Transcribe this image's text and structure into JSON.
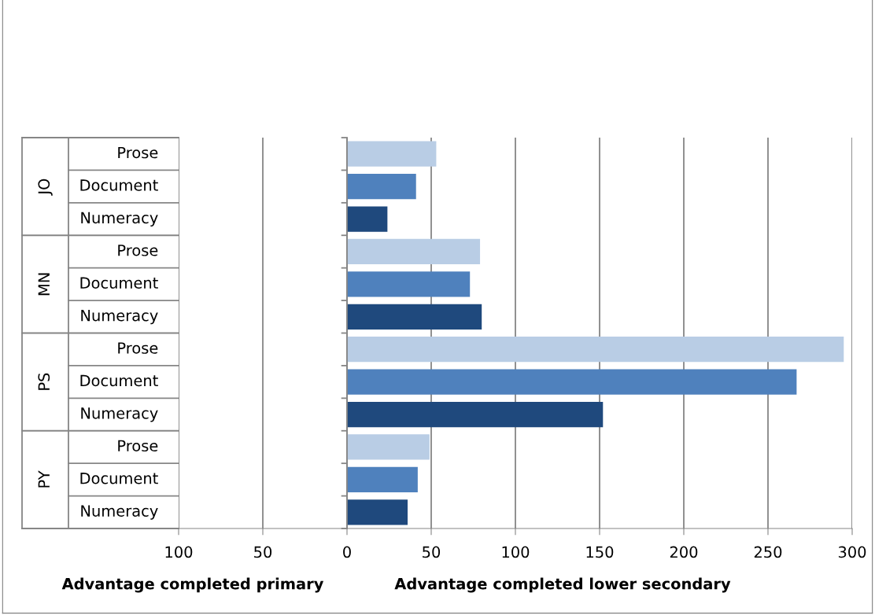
{
  "chart_data": {
    "type": "bar",
    "orientation": "horizontal",
    "categories": [
      "Prose",
      "Document",
      "Numeracy",
      "Prose",
      "Document",
      "Numeracy",
      "Prose",
      "Document",
      "Numeracy",
      "Prose",
      "Document",
      "Numeracy"
    ],
    "values": [
      53,
      41,
      24,
      79,
      73,
      80,
      295,
      267,
      152,
      49,
      42,
      36
    ],
    "colors": [
      "#b9cde5",
      "#4f81bd",
      "#1f497d",
      "#b9cde5",
      "#4f81bd",
      "#1f497d",
      "#b9cde5",
      "#4f81bd",
      "#1f497d",
      "#b9cde5",
      "#4f81bd",
      "#1f497d"
    ],
    "xlabel": "Advantage completed lower secondary",
    "annotations": [
      "JO",
      "MN",
      "PS",
      "PY",
      "Advantage completed primary"
    ],
    "xlim": [
      -100,
      300
    ],
    "xticks": [
      {
        "value": -100,
        "label": "100"
      },
      {
        "value": -50,
        "label": "50"
      },
      0,
      50,
      100,
      150,
      200,
      250,
      300
    ],
    "grid": "x"
  }
}
